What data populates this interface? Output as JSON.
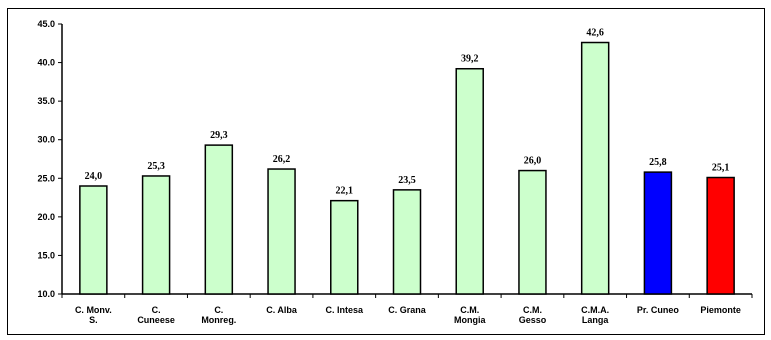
{
  "chart_data": {
    "type": "bar",
    "title": "",
    "xlabel": "",
    "ylabel": "",
    "ylim": [
      10.0,
      45.0
    ],
    "yticks": [
      "10.0",
      "15.0",
      "20.0",
      "25.0",
      "30.0",
      "35.0",
      "40.0",
      "45.0"
    ],
    "grid": false,
    "legend": "none",
    "categories": [
      [
        "C. Monv.",
        "S."
      ],
      [
        "C.",
        "Cuneese"
      ],
      [
        "C.",
        "Monreg."
      ],
      [
        "C. Alba"
      ],
      [
        "C. Intesa"
      ],
      [
        "C. Grana"
      ],
      [
        "C.M.",
        "Mongia"
      ],
      [
        "C.M.",
        "Gesso"
      ],
      [
        "C.M.A.",
        "Langa"
      ],
      [
        "Pr. Cuneo"
      ],
      [
        "Piemonte"
      ]
    ],
    "values": [
      24.0,
      25.3,
      29.3,
      26.2,
      22.1,
      23.5,
      39.2,
      26.0,
      42.6,
      25.8,
      25.1
    ],
    "value_labels": [
      "24,0",
      "25,3",
      "29,3",
      "26,2",
      "22,1",
      "23,5",
      "39,2",
      "26,0",
      "42,6",
      "25,8",
      "25,1"
    ],
    "bar_colors": [
      "#ccffcc",
      "#ccffcc",
      "#ccffcc",
      "#ccffcc",
      "#ccffcc",
      "#ccffcc",
      "#ccffcc",
      "#ccffcc",
      "#ccffcc",
      "#0000ff",
      "#ff0000"
    ]
  }
}
